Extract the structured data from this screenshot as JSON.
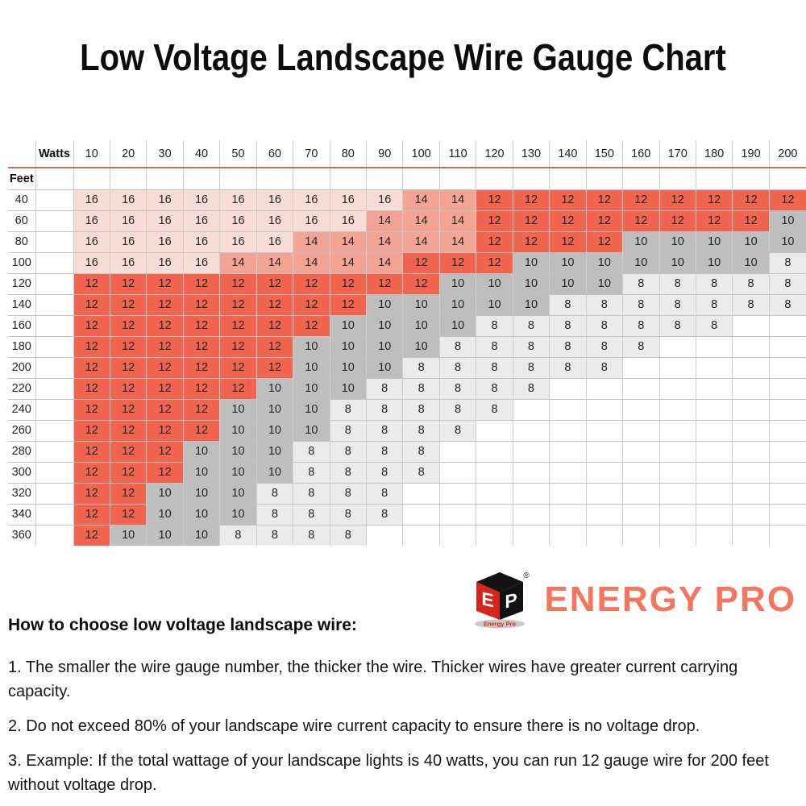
{
  "title": "Low Voltage Landscape Wire Gauge Chart",
  "chart_data": {
    "type": "table",
    "title": "Low Voltage Landscape Wire Gauge Chart",
    "column_header_label": "Watts",
    "row_header_label": "Feet",
    "columns_watts": [
      "10",
      "20",
      "30",
      "40",
      "50",
      "60",
      "70",
      "80",
      "90",
      "100",
      "110",
      "120",
      "130",
      "140",
      "150",
      "160",
      "170",
      "180",
      "190",
      "200"
    ],
    "rows_feet": [
      "40",
      "60",
      "80",
      "100",
      "120",
      "140",
      "160",
      "180",
      "200",
      "220",
      "240",
      "260",
      "280",
      "300",
      "320",
      "340",
      "360"
    ],
    "values_wire_gauge": [
      [
        16,
        16,
        16,
        16,
        16,
        16,
        16,
        16,
        16,
        14,
        14,
        12,
        12,
        12,
        12,
        12,
        12,
        12,
        12,
        12
      ],
      [
        16,
        16,
        16,
        16,
        16,
        16,
        16,
        16,
        14,
        14,
        14,
        12,
        12,
        12,
        12,
        12,
        12,
        12,
        12,
        10
      ],
      [
        16,
        16,
        16,
        16,
        16,
        16,
        14,
        14,
        14,
        14,
        14,
        12,
        12,
        12,
        12,
        10,
        10,
        10,
        10,
        10
      ],
      [
        16,
        16,
        16,
        16,
        14,
        14,
        14,
        14,
        14,
        12,
        12,
        12,
        10,
        10,
        10,
        10,
        10,
        10,
        10,
        8
      ],
      [
        12,
        12,
        12,
        12,
        12,
        12,
        12,
        12,
        12,
        12,
        10,
        10,
        10,
        10,
        10,
        8,
        8,
        8,
        8,
        8
      ],
      [
        12,
        12,
        12,
        12,
        12,
        12,
        12,
        12,
        10,
        10,
        10,
        10,
        10,
        8,
        8,
        8,
        8,
        8,
        8,
        8
      ],
      [
        12,
        12,
        12,
        12,
        12,
        12,
        12,
        10,
        10,
        10,
        10,
        8,
        8,
        8,
        8,
        8,
        8,
        8,
        null,
        null
      ],
      [
        12,
        12,
        12,
        12,
        12,
        12,
        10,
        10,
        10,
        10,
        8,
        8,
        8,
        8,
        8,
        8,
        null,
        null,
        null,
        null
      ],
      [
        12,
        12,
        12,
        12,
        12,
        12,
        10,
        10,
        10,
        8,
        8,
        8,
        8,
        8,
        8,
        null,
        null,
        null,
        null,
        null
      ],
      [
        12,
        12,
        12,
        12,
        12,
        10,
        10,
        10,
        8,
        8,
        8,
        8,
        8,
        null,
        null,
        null,
        null,
        null,
        null,
        null
      ],
      [
        12,
        12,
        12,
        12,
        10,
        10,
        10,
        8,
        8,
        8,
        8,
        8,
        null,
        null,
        null,
        null,
        null,
        null,
        null,
        null
      ],
      [
        12,
        12,
        12,
        12,
        10,
        10,
        10,
        8,
        8,
        8,
        8,
        null,
        null,
        null,
        null,
        null,
        null,
        null,
        null,
        null
      ],
      [
        12,
        12,
        12,
        10,
        10,
        10,
        8,
        8,
        8,
        8,
        null,
        null,
        null,
        null,
        null,
        null,
        null,
        null,
        null,
        null
      ],
      [
        12,
        12,
        12,
        10,
        10,
        10,
        8,
        8,
        8,
        8,
        null,
        null,
        null,
        null,
        null,
        null,
        null,
        null,
        null,
        null
      ],
      [
        12,
        12,
        10,
        10,
        10,
        8,
        8,
        8,
        8,
        null,
        null,
        null,
        null,
        null,
        null,
        null,
        null,
        null,
        null,
        null
      ],
      [
        12,
        12,
        10,
        10,
        10,
        8,
        8,
        8,
        8,
        null,
        null,
        null,
        null,
        null,
        null,
        null,
        null,
        null,
        null,
        null
      ],
      [
        12,
        10,
        10,
        10,
        8,
        8,
        8,
        8,
        null,
        null,
        null,
        null,
        null,
        null,
        null,
        null,
        null,
        null,
        null,
        null
      ]
    ]
  },
  "colors": {
    "gauge_16": "#fadcd6",
    "gauge_14": "#f3a495",
    "gauge_12": "#f1654e",
    "gauge_10": "#bfbebe",
    "gauge_8": "#ebebeb",
    "header_underline": "#bf7150",
    "brand_coral": "#f4765f",
    "logo_red": "#d6251a",
    "logo_black": "#161616",
    "logo_ellipse_gray": "#c9c9c9"
  },
  "logo": {
    "brand": "ENERGY PRO",
    "mark_left_letter": "E",
    "mark_right_letter": "P",
    "registered_mark": "®",
    "mark_caption": "Energy Pro"
  },
  "notes": {
    "heading": "How to choose low voltage landscape wire:",
    "items": [
      {
        "lines": [
          "1. The smaller the wire gauge number, the thicker the wire. Thicker wires have greater current carrying",
          "capacity."
        ]
      },
      {
        "lines": [
          "2. Do not exceed 80% of your landscape wire current capacity to ensure there is no voltage drop."
        ]
      },
      {
        "lines": [
          "3. Example: If the total wattage of your landscape lights is 40 watts, you can run 12 gauge wire for 200 feet",
          "without voltage drop."
        ]
      }
    ]
  }
}
